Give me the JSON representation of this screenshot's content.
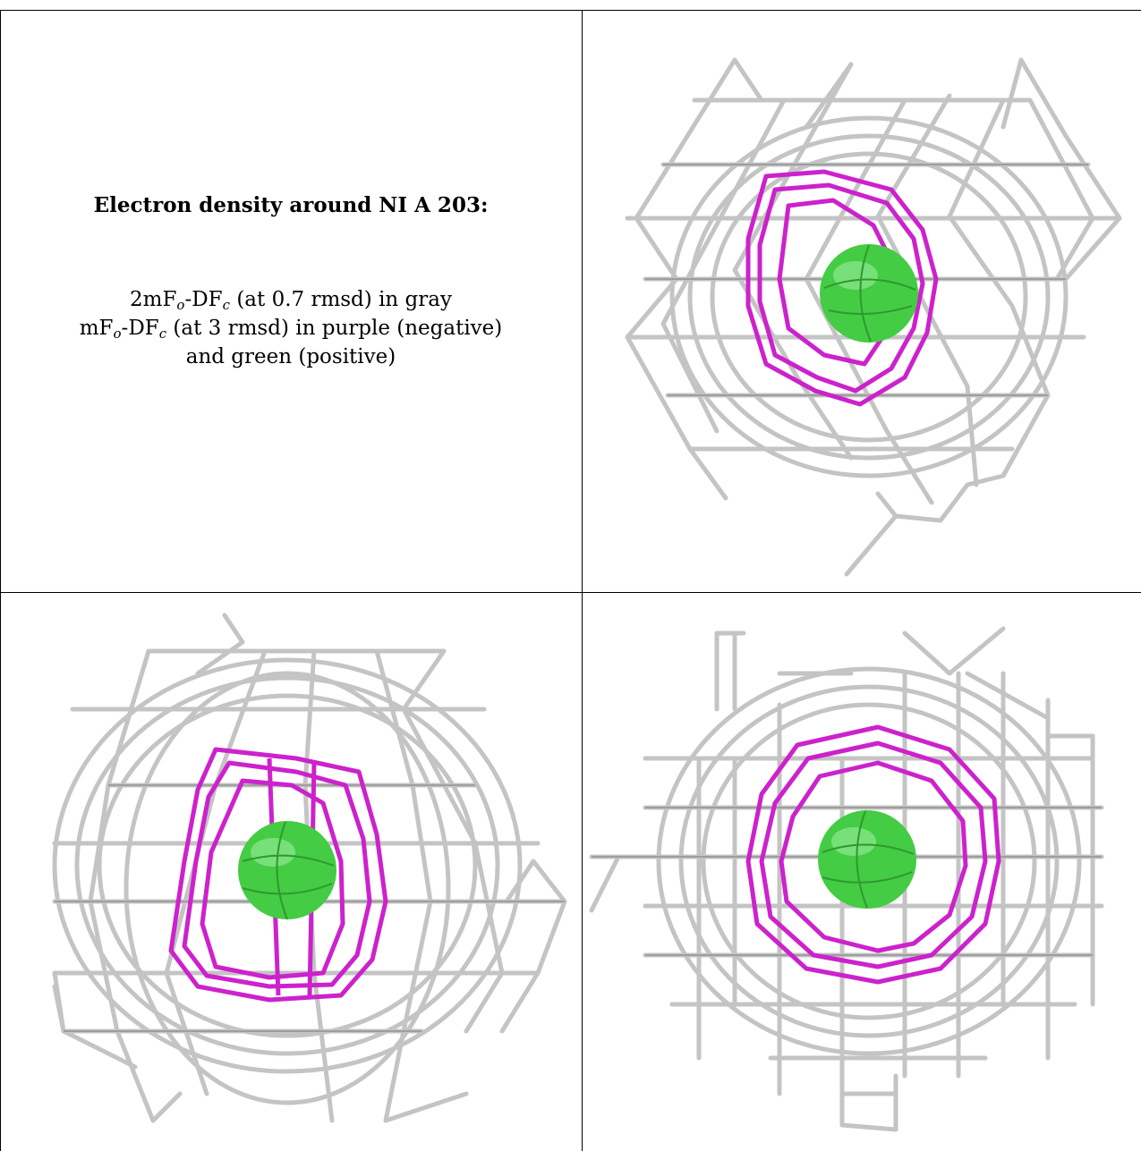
{
  "caption": {
    "title": "Electron density around NI A 203:",
    "line1": {
      "a": "2mF",
      "a_sub": "o",
      "b": "-DF",
      "b_sub": "c",
      "c": " (at 0.7 rmsd) in gray"
    },
    "line2": {
      "a": "mF",
      "a_sub": "o",
      "b": "-DF",
      "b_sub": "c",
      "c": " (at 3 rmsd) in purple (negative)"
    },
    "line3": "and green (positive)"
  },
  "colors": {
    "gray_mesh": "#c4c4c4",
    "gray_mesh_dark": "#8e8e8e",
    "purple_mesh": "#cc22cc",
    "green_sphere": "#44cc44",
    "border": "#000000"
  },
  "views": [
    {
      "name": "top-right",
      "sphere_color": "green",
      "negative_mesh": "purple"
    },
    {
      "name": "bottom-left",
      "sphere_color": "green",
      "negative_mesh": "purple"
    },
    {
      "name": "bottom-right",
      "sphere_color": "green",
      "negative_mesh": "purple"
    }
  ]
}
